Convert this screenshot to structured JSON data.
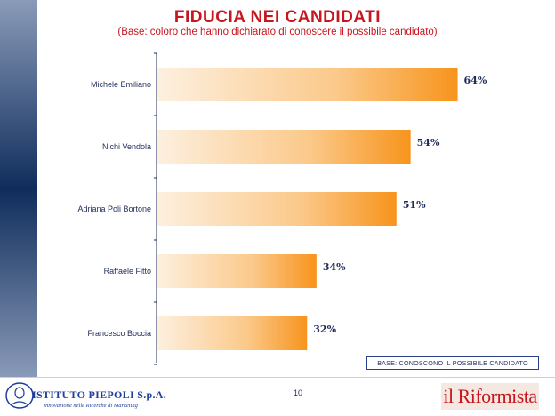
{
  "title": "FIDUCIA NEI CANDIDATI",
  "subtitle": "(Base: coloro che hanno dichiarato di conoscere il possibile candidato)",
  "chart_data": {
    "type": "bar",
    "orientation": "horizontal",
    "categories": [
      "Michele Emiliano",
      "Nichi Vendola",
      "Adriana Poli Bortone",
      "Raffaele Fitto",
      "Francesco Boccia"
    ],
    "values": [
      64,
      54,
      51,
      34,
      32
    ],
    "value_labels": [
      "64%",
      "54%",
      "51%",
      "34%",
      "32%"
    ],
    "unit": "%",
    "xlim": [
      0,
      100
    ],
    "grid": false,
    "bar_color_start": "#fdf0e0",
    "bar_color_end": "#f7941d"
  },
  "base_note": "BASE: CONOSCONO IL POSSIBILE CANDIDATO",
  "page_number": "10",
  "footer": {
    "left_logo_name": "ISTITUTO PIEPOLI S.p.A.",
    "left_logo_tagline": "Innovazione nelle Ricerche di Marketing",
    "right_logo_text": "il Riformista"
  },
  "colors": {
    "title": "#c8161e",
    "text": "#1e2b5a",
    "side_bar": "#0f2d5c"
  }
}
